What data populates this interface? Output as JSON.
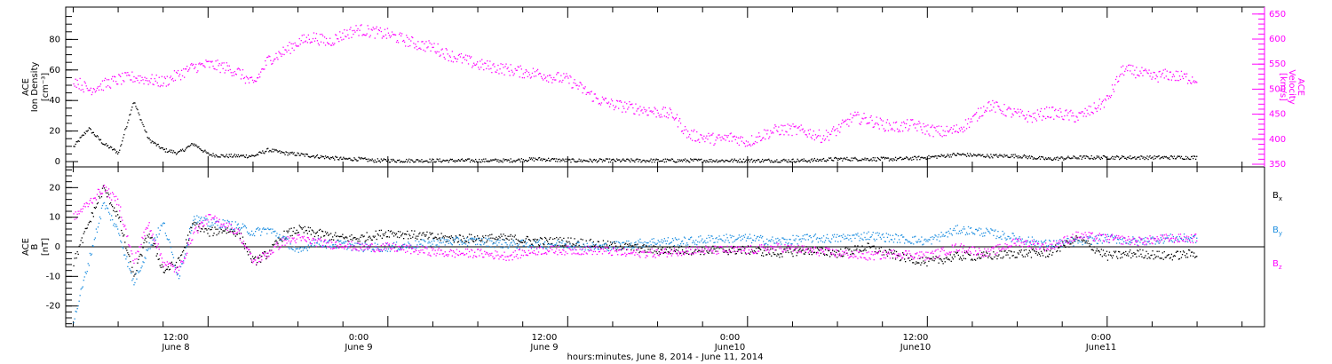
{
  "chart_data": [
    {
      "type": "scatter",
      "panel": "top",
      "ylabel_left": [
        "ACE",
        "Ion Density",
        "[cm⁻³]"
      ],
      "ylabel_right": [
        "ACE",
        "Velocity",
        "[km/s]"
      ],
      "y_left_ticks": [
        "0",
        "20",
        "40",
        "60",
        "80"
      ],
      "y_right_ticks": [
        "350",
        "400",
        "450",
        "500",
        "550",
        "600",
        "650"
      ],
      "ylim_left": [
        0,
        100
      ],
      "ylim_right": [
        350,
        655
      ],
      "x_unit": "hours since June 8, 2014 00:00",
      "xlim": [
        2.5,
        82.5
      ],
      "colors": {
        "density": "#000000",
        "velocity": "#ff00ff"
      },
      "series": [
        {
          "name": "Ion Density",
          "axis": "left",
          "color": "#000000",
          "x": [
            3,
            4,
            5,
            6,
            7,
            8,
            9,
            10,
            11,
            12,
            13,
            14,
            15,
            16,
            17,
            18,
            19,
            20,
            21,
            22,
            23,
            24,
            26,
            28,
            30,
            32,
            34,
            36,
            38,
            40,
            42,
            44,
            46,
            48,
            50,
            52,
            54,
            56,
            58,
            60,
            62,
            64,
            66,
            68,
            70,
            72,
            74,
            76,
            78
          ],
          "y": [
            10,
            22,
            12,
            6,
            40,
            15,
            8,
            6,
            12,
            5,
            4,
            4,
            4,
            8,
            6,
            5,
            4,
            3,
            2,
            2,
            1,
            1,
            1,
            1,
            1,
            1,
            2,
            1,
            1,
            1,
            1,
            1,
            1,
            1,
            1,
            1,
            2,
            2,
            2,
            3,
            5,
            4,
            4,
            2,
            3,
            3,
            3,
            3,
            3
          ]
        },
        {
          "name": "Velocity",
          "axis": "right",
          "color": "#ff00ff",
          "x": [
            3,
            4,
            5,
            6,
            7,
            8,
            9,
            10,
            11,
            12,
            13,
            14,
            15,
            16,
            17,
            18,
            19,
            20,
            21,
            22,
            23,
            24,
            25,
            26,
            27,
            28,
            29,
            30,
            31,
            32,
            33,
            34,
            35,
            36,
            37,
            38,
            39,
            40,
            41,
            42,
            43,
            44,
            45,
            46,
            47,
            48,
            49,
            50,
            51,
            52,
            53,
            54,
            55,
            56,
            57,
            58,
            59,
            60,
            61,
            62,
            63,
            64,
            65,
            66,
            67,
            68,
            69,
            70,
            71,
            72,
            73,
            74,
            75,
            76,
            77,
            78
          ],
          "y": [
            520,
            500,
            510,
            520,
            525,
            520,
            515,
            530,
            545,
            550,
            545,
            535,
            510,
            560,
            575,
            595,
            605,
            595,
            610,
            620,
            615,
            610,
            600,
            590,
            585,
            570,
            560,
            550,
            545,
            540,
            535,
            532,
            525,
            520,
            500,
            480,
            470,
            465,
            460,
            455,
            450,
            410,
            405,
            400,
            405,
            395,
            410,
            420,
            420,
            415,
            405,
            420,
            445,
            440,
            430,
            425,
            430,
            420,
            415,
            420,
            440,
            470,
            460,
            450,
            445,
            455,
            450,
            445,
            460,
            480,
            540,
            535,
            525,
            530,
            525,
            520
          ]
        }
      ]
    },
    {
      "type": "scatter",
      "panel": "bottom",
      "ylabel_left": [
        "ACE",
        "B",
        "[nT]"
      ],
      "y_ticks": [
        "-20",
        "-10",
        "0",
        "10",
        "20"
      ],
      "ylim": [
        -27,
        27
      ],
      "x_unit": "hours since June 8, 2014 00:00",
      "xlim": [
        2.5,
        82.5
      ],
      "legend_position": "right",
      "series": [
        {
          "name": "Bx",
          "color": "#000000",
          "x": [
            3,
            4,
            5,
            6,
            7,
            8,
            9,
            10,
            11,
            12,
            13,
            14,
            15,
            16,
            17,
            18,
            19,
            20,
            21,
            22,
            24,
            26,
            28,
            30,
            32,
            34,
            36,
            38,
            40,
            42,
            44,
            46,
            48,
            50,
            52,
            54,
            56,
            58,
            60,
            62,
            64,
            66,
            68,
            70,
            72,
            74,
            76,
            78
          ],
          "y": [
            -5,
            8,
            20,
            10,
            -10,
            5,
            -8,
            -5,
            8,
            5,
            6,
            5,
            -5,
            -2,
            4,
            6,
            5,
            4,
            3,
            3,
            5,
            4,
            3,
            3,
            3,
            2,
            2,
            1,
            0,
            -1,
            -1,
            -1,
            -1,
            -2,
            -1,
            -2,
            0,
            -3,
            -5,
            -3,
            -3,
            -2,
            -2,
            3,
            -3,
            -2,
            -3,
            -2
          ]
        },
        {
          "name": "By",
          "color": "#1f8fe0",
          "x": [
            3,
            4,
            5,
            6,
            7,
            8,
            9,
            10,
            11,
            12,
            13,
            14,
            15,
            16,
            17,
            18,
            19,
            20,
            21,
            22,
            24,
            26,
            28,
            30,
            32,
            34,
            36,
            38,
            40,
            42,
            44,
            46,
            48,
            50,
            52,
            54,
            56,
            58,
            60,
            62,
            64,
            66,
            68,
            70,
            72,
            74,
            76,
            78
          ],
          "y": [
            -25,
            -5,
            15,
            5,
            -12,
            0,
            8,
            -10,
            10,
            8,
            8,
            7,
            5,
            6,
            3,
            -2,
            2,
            1,
            1,
            0,
            0,
            1,
            2,
            2,
            1,
            1,
            1,
            0,
            1,
            2,
            2,
            3,
            3,
            2,
            3,
            3,
            4,
            3,
            2,
            6,
            5,
            3,
            1,
            2,
            3,
            2,
            3,
            3
          ]
        },
        {
          "name": "Bz",
          "color": "#ff00ff",
          "x": [
            3,
            4,
            5,
            6,
            7,
            8,
            9,
            10,
            11,
            12,
            13,
            14,
            15,
            16,
            17,
            18,
            19,
            20,
            21,
            22,
            24,
            26,
            28,
            30,
            32,
            34,
            36,
            38,
            40,
            42,
            44,
            46,
            48,
            50,
            52,
            54,
            56,
            58,
            60,
            62,
            64,
            66,
            68,
            70,
            72,
            74,
            76,
            78
          ],
          "y": [
            10,
            15,
            20,
            15,
            -5,
            8,
            -5,
            -8,
            5,
            10,
            8,
            5,
            -5,
            -2,
            2,
            3,
            2,
            1,
            1,
            0,
            0,
            -1,
            -2,
            -2,
            -3,
            -1,
            -1,
            -1,
            -2,
            -2,
            -1,
            -1,
            -1,
            0,
            -1,
            -2,
            -3,
            -2,
            -3,
            0,
            -2,
            2,
            0,
            4,
            3,
            2,
            3,
            3
          ]
        }
      ]
    }
  ],
  "labels": {
    "y_top_left": [
      "ACE",
      "Ion Density",
      "[cm⁻³]"
    ],
    "y_top_right": [
      "ACE",
      "Velocity",
      "[km/s]"
    ],
    "y_bottom_left": [
      "ACE",
      "B",
      "[nT]"
    ],
    "legend": {
      "bx_base": "B",
      "bx_sub": "x",
      "by_base": "B",
      "by_sub": "y",
      "bz_base": "B",
      "bz_sub": "z"
    },
    "x_ticks_time": [
      "12:00",
      "0:00",
      "12:00",
      "0:00",
      "12:00",
      "0:00"
    ],
    "x_ticks_day": [
      "June 8",
      "June 9",
      "June 9",
      "June10",
      "June10",
      "June11"
    ],
    "x_axis_title": "hours:minutes, June  8, 2014 - June 11, 2014"
  }
}
